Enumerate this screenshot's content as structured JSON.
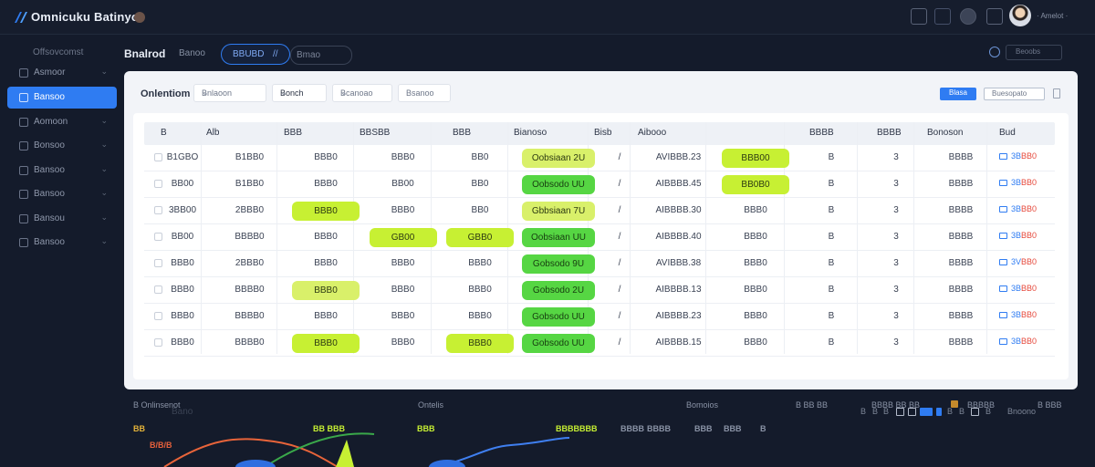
{
  "app": {
    "brand": "Omnicuku Batinyo",
    "user_name": "· Amelot ·"
  },
  "sidebar": {
    "heading": "Offsovcomst",
    "items": [
      {
        "label": "Asmoor",
        "active": false
      },
      {
        "label": "Bansoo",
        "active": true
      },
      {
        "label": "Aomoon",
        "active": false
      },
      {
        "label": "Bonsoo",
        "active": false
      },
      {
        "label": "Bansoo",
        "active": false
      },
      {
        "label": "Bansoo",
        "active": false
      },
      {
        "label": "Bansou",
        "active": false
      },
      {
        "label": "Bansoo",
        "active": false
      }
    ]
  },
  "header": {
    "title": "Bnalrod",
    "crumb": "Banoo",
    "search_value": "BBUBD",
    "search_suffix": "//",
    "select_value": "Bmao",
    "right_input": "Beoobs"
  },
  "filters": {
    "label": "Onlentiom",
    "items": [
      {
        "value": "Bnlaoon"
      },
      {
        "value": "Bonch"
      },
      {
        "value": "Bcanoao"
      },
      {
        "value": "Bsanoo"
      }
    ],
    "primary_button": "Blasa",
    "outline_button": "Buesopato"
  },
  "table": {
    "headers": [
      "B",
      "Alb",
      "BBB",
      "BBSBB",
      "BBB",
      "Bianoso",
      "Bisb",
      "Aibooo",
      "BBBB",
      "BBBB",
      "Bonoson",
      "Bud"
    ],
    "rows": [
      {
        "c0": "B1GBO",
        "c1": "B1BB0",
        "c2": "BBB0",
        "c3": "BBB0",
        "c4": "BB0",
        "c5": "Oobsiaan 2U",
        "c6": "/",
        "c7": "AVIBBB.23",
        "c8": "BBB00",
        "c9": "B",
        "c10": "3",
        "c11": "BBBB",
        "c12b": "3B",
        "c12r": "BB0",
        "pill_c2": "",
        "pill_c3": "",
        "pill_c4": "",
        "pill_c5": "yellow",
        "pill_c8": "lime"
      },
      {
        "c0": "BB00",
        "c1": "B1BB0",
        "c2": "BBB0",
        "c3": "BB00",
        "c4": "BB0",
        "c5": "Oobsodo UU",
        "c6": "/",
        "c7": "AIBBBB.45",
        "c8": "BB0B0",
        "c9": "B",
        "c10": "3",
        "c11": "BBBB",
        "c12b": "3B",
        "c12r": "BB0",
        "pill_c2": "",
        "pill_c3": "",
        "pill_c4": "",
        "pill_c5": "green",
        "pill_c8": "lime"
      },
      {
        "c0": "3BB00",
        "c1": "2BBB0",
        "c2": "BBB0",
        "c3": "BBB0",
        "c4": "BB0",
        "c5": "Gbbsiaan 7U",
        "c6": "/",
        "c7": "AIBBBB.30",
        "c8": "BBB0",
        "c9": "B",
        "c10": "3",
        "c11": "BBBB",
        "c12b": "3B",
        "c12r": "BB0",
        "pill_c2": "lime",
        "pill_c3": "",
        "pill_c4": "",
        "pill_c5": "yellow",
        "pill_c8": ""
      },
      {
        "c0": "BB00",
        "c1": "BBBB0",
        "c2": "BBB0",
        "c3": "GB00",
        "c4": "GBB0",
        "c5": "Oobsiaan UU",
        "c6": "/",
        "c7": "AIBBBB.40",
        "c8": "BBB0",
        "c9": "B",
        "c10": "3",
        "c11": "BBBB",
        "c12b": "3B",
        "c12r": "BB0",
        "pill_c2": "",
        "pill_c3": "lime",
        "pill_c4": "lime",
        "pill_c5": "green",
        "pill_c8": ""
      },
      {
        "c0": "BBB0",
        "c1": "2BBB0",
        "c2": "BBB0",
        "c3": "BBB0",
        "c4": "BBB0",
        "c5": "Gobsodo 9U",
        "c6": "/",
        "c7": "AVIBBB.38",
        "c8": "BBB0",
        "c9": "B",
        "c10": "3",
        "c11": "BBBB",
        "c12b": "3V",
        "c12r": "BB0",
        "pill_c2": "",
        "pill_c3": "",
        "pill_c4": "",
        "pill_c5": "green",
        "pill_c8": ""
      },
      {
        "c0": "BBB0",
        "c1": "BBBB0",
        "c2": "BBB0",
        "c3": "BBB0",
        "c4": "BBB0",
        "c5": "Gobsodo 2U",
        "c6": "/",
        "c7": "AIBBBB.13",
        "c8": "BBB0",
        "c9": "B",
        "c10": "3",
        "c11": "BBBB",
        "c12b": "3B",
        "c12r": "BB0",
        "pill_c2": "yellow",
        "pill_c3": "",
        "pill_c4": "",
        "pill_c5": "green",
        "pill_c8": ""
      },
      {
        "c0": "BBB0",
        "c1": "BBBB0",
        "c2": "BBB0",
        "c3": "BBB0",
        "c4": "BBB0",
        "c5": "Gobsodo UU",
        "c6": "/",
        "c7": "AIBBBB.23",
        "c8": "BBB0",
        "c9": "B",
        "c10": "3",
        "c11": "BBBB",
        "c12b": "3B",
        "c12r": "BB0",
        "pill_c2": "",
        "pill_c3": "",
        "pill_c4": "",
        "pill_c5": "green",
        "pill_c8": ""
      },
      {
        "c0": "BBB0",
        "c1": "BBBB0",
        "c2": "BBB0",
        "c3": "BBB0",
        "c4": "BBB0",
        "c5": "Gobsodo UU",
        "c6": "/",
        "c7": "AIBBBB.15",
        "c8": "BBB0",
        "c9": "B",
        "c10": "3",
        "c11": "BBBB",
        "c12b": "3B",
        "c12r": "BB0",
        "pill_c2": "lime",
        "pill_c3": "",
        "pill_c4": "lime",
        "pill_c5": "green",
        "pill_c8": ""
      }
    ],
    "footer_label": "Bano",
    "pager_text": "B",
    "pager_size": "Bnoono"
  },
  "strip": {
    "labels": [
      "B Onlinsenot",
      "Ontelis",
      "Bomoios",
      "B BB BB",
      "BBBB BB BB",
      "BBBBB",
      "B BBB"
    ],
    "values": [
      {
        "text": "BB",
        "color": "#e5b43a"
      },
      {
        "text": "BB BBB",
        "color": "#c7f033"
      },
      {
        "text": "BBB",
        "color": "#c7f033"
      },
      {
        "text": "BBBBBBB",
        "color": "#c7f033"
      },
      {
        "text": "BBBB",
        "color": "#8a93a6"
      },
      {
        "text": "BBBB",
        "color": "#8a93a6"
      },
      {
        "text": "BBB",
        "color": "#8a93a6"
      },
      {
        "text": "BBB",
        "color": "#8a93a6"
      },
      {
        "text": "B",
        "color": "#8a93a6"
      }
    ],
    "left_tick": "B/B/B"
  },
  "colors": {
    "accent": "#2f7cf2",
    "lime": "#c7f033",
    "green": "#56d643",
    "bg": "#141b2b"
  }
}
